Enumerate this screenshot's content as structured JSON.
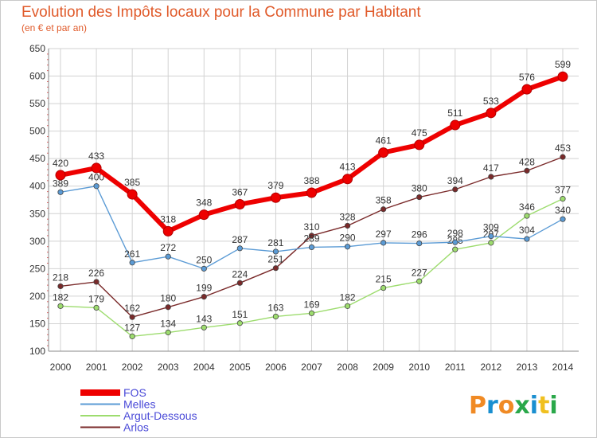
{
  "header": {
    "title": "Evolution des Impôts locaux pour la Commune par Habitant",
    "subtitle": "(en € et par an)"
  },
  "logo": {
    "text": "Proxiti",
    "colors": [
      "#f08a24",
      "#1a8fd0",
      "#f08a24",
      "#2aa84a",
      "#1a8fd0",
      "#f0c020",
      "#2aa84a"
    ]
  },
  "chart_data": {
    "type": "line",
    "title": "Evolution des Impôts locaux pour la Commune par Habitant",
    "subtitle": "(en € et par an)",
    "xlabel": "",
    "ylabel": "",
    "x": [
      "2000",
      "2001",
      "2002",
      "2003",
      "2004",
      "2005",
      "2006",
      "2007",
      "2008",
      "2009",
      "2010",
      "2011",
      "2012",
      "2013",
      "2014"
    ],
    "ylim": [
      100,
      650
    ],
    "yticks": [
      100,
      150,
      200,
      250,
      300,
      350,
      400,
      450,
      500,
      550,
      600,
      650
    ],
    "grid": true,
    "legend_position": "bottom-left",
    "series": [
      {
        "name": "FOS",
        "color": "#ee0000",
        "values": [
          420,
          433,
          385,
          318,
          348,
          367,
          379,
          388,
          413,
          461,
          475,
          511,
          533,
          576,
          599
        ]
      },
      {
        "name": "Melles",
        "color": "#5b9bd5",
        "values": [
          389,
          400,
          261,
          272,
          250,
          287,
          281,
          289,
          290,
          297,
          296,
          298,
          309,
          304,
          340
        ]
      },
      {
        "name": "Argut-Dessous",
        "color": "#9ddc6e",
        "values": [
          182,
          179,
          127,
          134,
          143,
          151,
          163,
          169,
          182,
          215,
          227,
          285,
          297,
          346,
          377
        ]
      },
      {
        "name": "Arlos",
        "color": "#7a2a2a",
        "values": [
          218,
          226,
          162,
          180,
          199,
          224,
          251,
          310,
          328,
          358,
          380,
          394,
          417,
          428,
          453
        ]
      }
    ]
  }
}
